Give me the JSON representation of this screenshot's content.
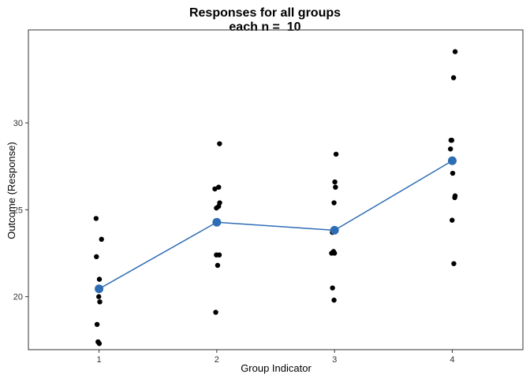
{
  "chart_data": {
    "type": "scatter",
    "title": "Responses for all groups",
    "subtitle": "each n =  10",
    "xlabel": "Group Indicator",
    "ylabel": "Outcome (Response)",
    "categories": [
      "1",
      "2",
      "3",
      "4"
    ],
    "xlim": [
      0.4,
      4.6
    ],
    "ylim": [
      16.95,
      35.35
    ],
    "yticks": [
      20,
      25,
      30
    ],
    "grid": false,
    "points": [
      {
        "x": 1,
        "y": 24.5
      },
      {
        "x": 1,
        "y": 23.3
      },
      {
        "x": 1,
        "y": 22.3
      },
      {
        "x": 1,
        "y": 21.0
      },
      {
        "x": 1,
        "y": 20.4
      },
      {
        "x": 1,
        "y": 20.0
      },
      {
        "x": 1,
        "y": 19.7
      },
      {
        "x": 1,
        "y": 18.4
      },
      {
        "x": 1,
        "y": 17.4
      },
      {
        "x": 1,
        "y": 17.3
      },
      {
        "x": 2,
        "y": 28.8
      },
      {
        "x": 2,
        "y": 26.3
      },
      {
        "x": 2,
        "y": 26.2
      },
      {
        "x": 2,
        "y": 25.4
      },
      {
        "x": 2,
        "y": 25.2
      },
      {
        "x": 2,
        "y": 25.1
      },
      {
        "x": 2,
        "y": 22.4
      },
      {
        "x": 2,
        "y": 22.4
      },
      {
        "x": 2,
        "y": 21.8
      },
      {
        "x": 2,
        "y": 19.1
      },
      {
        "x": 3,
        "y": 28.2
      },
      {
        "x": 3,
        "y": 26.6
      },
      {
        "x": 3,
        "y": 26.3
      },
      {
        "x": 3,
        "y": 25.4
      },
      {
        "x": 3,
        "y": 23.7
      },
      {
        "x": 3,
        "y": 22.6
      },
      {
        "x": 3,
        "y": 22.5
      },
      {
        "x": 3,
        "y": 22.5
      },
      {
        "x": 3,
        "y": 20.5
      },
      {
        "x": 3,
        "y": 19.8
      },
      {
        "x": 4,
        "y": 34.1
      },
      {
        "x": 4,
        "y": 32.6
      },
      {
        "x": 4,
        "y": 29.0
      },
      {
        "x": 4,
        "y": 29.0
      },
      {
        "x": 4,
        "y": 28.5
      },
      {
        "x": 4,
        "y": 27.1
      },
      {
        "x": 4,
        "y": 25.8
      },
      {
        "x": 4,
        "y": 25.7
      },
      {
        "x": 4,
        "y": 24.4
      },
      {
        "x": 4,
        "y": 21.9
      }
    ],
    "means": [
      {
        "x": 1,
        "y": 20.45
      },
      {
        "x": 2,
        "y": 24.28
      },
      {
        "x": 3,
        "y": 23.82
      },
      {
        "x": 4,
        "y": 27.82
      }
    ],
    "colors": {
      "points": "#000000",
      "mean_line": "#2E6DB4",
      "mean_points": "#2E6DB4",
      "panel_border": "#333333",
      "ticks": "#333333"
    }
  }
}
